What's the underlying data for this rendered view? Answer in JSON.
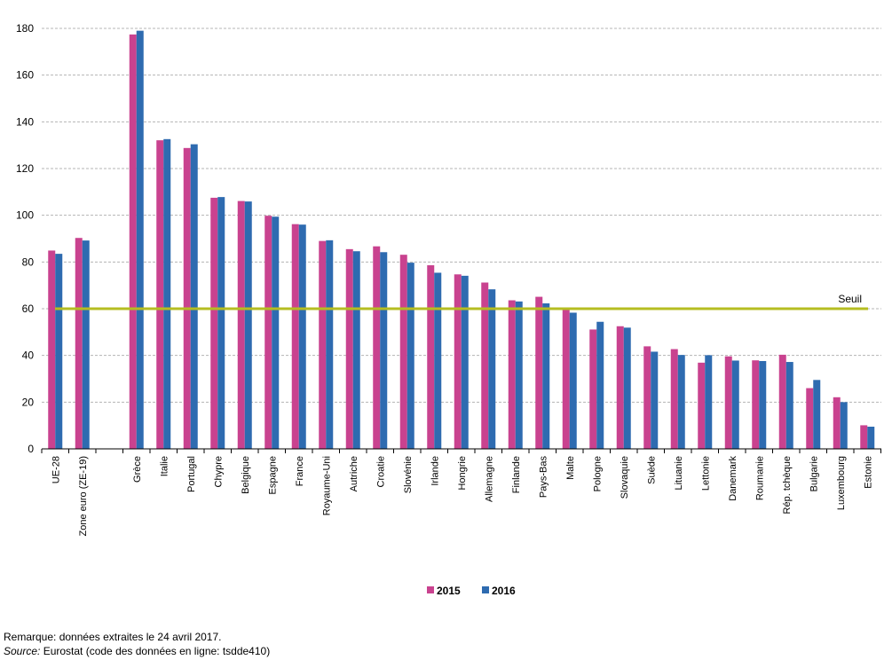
{
  "chart_data": {
    "type": "bar",
    "title": "",
    "xlabel": "",
    "ylabel": "",
    "ylim": [
      0,
      180
    ],
    "yticks": [
      0,
      20,
      40,
      60,
      80,
      100,
      120,
      140,
      160,
      180
    ],
    "grid": "horizontal dashed",
    "legend_position": "bottom-center",
    "categories": [
      "UE-28",
      "Zone euro (ZE-19)",
      "",
      "Grèce",
      "Italie",
      "Portugal",
      "Chypre",
      "Belgique",
      "Espagne",
      "France",
      "Royaume-Uni",
      "Autriche",
      "Croatie",
      "Slovénie",
      "Irlande",
      "Hongrie",
      "Allemagne",
      "Finlande",
      "Pays-Bas",
      "Malte",
      "Pologne",
      "Slovaquie",
      "Suède",
      "Lituanie",
      "Lettonie",
      "Danemark",
      "Roumanie",
      "Rép. tchèque",
      "Bulgarie",
      "Luxembourg",
      "Estonie"
    ],
    "series": [
      {
        "name": "2015",
        "color": "#c9428f",
        "values": [
          84.9,
          90.3,
          null,
          177.4,
          132.1,
          128.8,
          107.5,
          106.1,
          99.8,
          96.2,
          89.0,
          85.5,
          86.7,
          83.1,
          78.6,
          74.7,
          71.2,
          63.6,
          65.1,
          60.3,
          51.1,
          52.5,
          43.9,
          42.7,
          36.9,
          39.6,
          37.9,
          40.3,
          26.0,
          22.1,
          10.1
        ]
      },
      {
        "name": "2016",
        "color": "#2e6bb0",
        "values": [
          83.5,
          89.2,
          null,
          179.0,
          132.6,
          130.4,
          107.8,
          105.9,
          99.4,
          96.0,
          89.3,
          84.6,
          84.2,
          79.7,
          75.4,
          74.1,
          68.3,
          63.1,
          62.3,
          58.3,
          54.4,
          51.9,
          41.6,
          40.2,
          40.1,
          37.8,
          37.6,
          37.2,
          29.5,
          20.0,
          9.5
        ]
      }
    ],
    "reference_line": {
      "label": "Seuil",
      "value": 60,
      "color": "#b5bd21"
    }
  },
  "footnotes": {
    "remark": "Remarque: données extraites le 24 avril 2017.",
    "source_prefix": "Source:",
    "source_text": " Eurostat (code des données en ligne: tsdde410)"
  }
}
